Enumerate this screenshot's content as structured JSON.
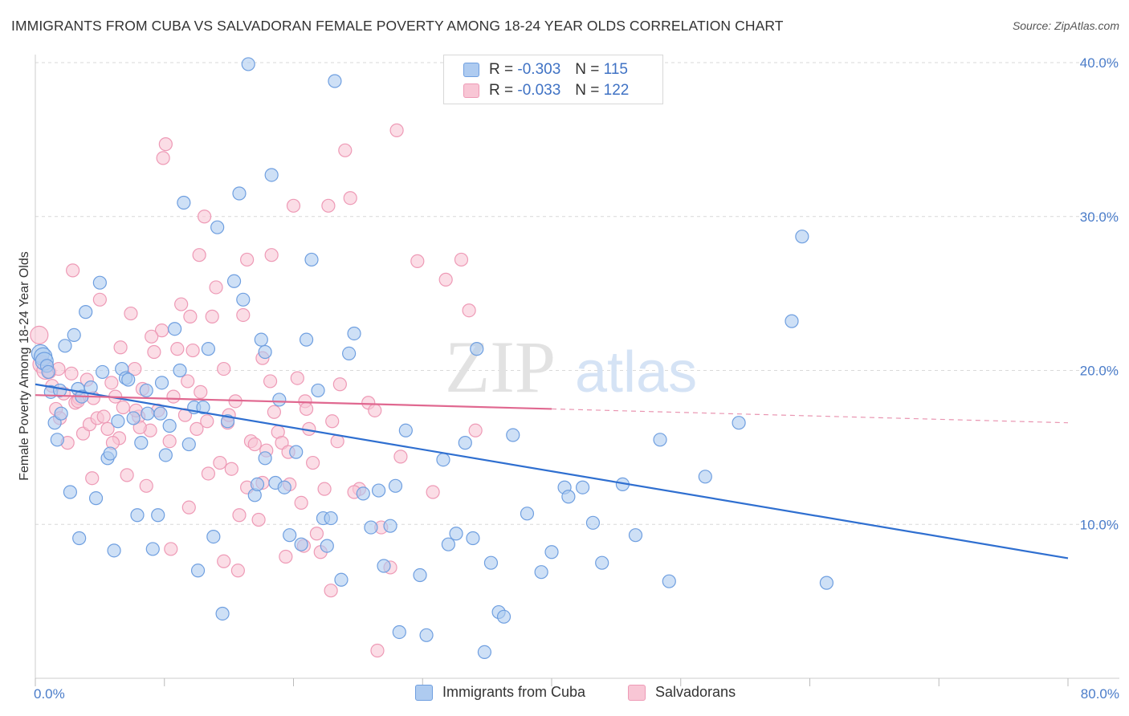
{
  "title": "IMMIGRANTS FROM CUBA VS SALVADORAN FEMALE POVERTY AMONG 18-24 YEAR OLDS CORRELATION CHART",
  "source": "Source: ZipAtlas.com",
  "watermark": {
    "zip": "ZIP",
    "atlas": "atlas"
  },
  "legend": {
    "r_label": "R =",
    "n_label": "N =",
    "rows": [
      {
        "r": "-0.303",
        "n": "115",
        "color": "#6f9fe0"
      },
      {
        "r": "-0.033",
        "n": "122",
        "color": "#f0a0bb"
      }
    ]
  },
  "bottom_legend": [
    "Immigrants from Cuba",
    "Salvadorans"
  ],
  "colors": {
    "blue_fill": "#aecbf0",
    "blue_stroke": "#6f9fe0",
    "blue_line": "#2f6fd0",
    "pink_fill": "#f8c6d5",
    "pink_stroke": "#ee9ab6",
    "pink_line": "#e06890",
    "grid": "#d9d9d9",
    "tick_text": "#4a7cc9"
  },
  "chart_data": {
    "type": "scatter",
    "title": "IMMIGRANTS FROM CUBA VS SALVADORAN FEMALE POVERTY AMONG 18-24 YEAR OLDS CORRELATION CHART",
    "xlabel": "",
    "ylabel": "Female Poverty Among 18-24 Year Olds",
    "xlim": [
      0,
      80
    ],
    "ylim": [
      0,
      40
    ],
    "x_ticks": [
      "0.0%",
      "80.0%"
    ],
    "y_ticks": [
      {
        "value": 10,
        "label": "10.0%"
      },
      {
        "value": 20,
        "label": "20.0%"
      },
      {
        "value": 30,
        "label": "30.0%"
      },
      {
        "value": 40,
        "label": "40.0%"
      }
    ],
    "grid": true,
    "legend_position": "top-center",
    "series": [
      {
        "name": "Immigrants from Cuba",
        "r": -0.303,
        "n": 115,
        "trend": {
          "x0": 0,
          "y0": 19.1,
          "x1": 80,
          "y1": 7.8,
          "dashed_from": null
        },
        "points": [
          [
            0.4,
            21.1
          ],
          [
            0.6,
            20.9
          ],
          [
            0.7,
            20.6
          ],
          [
            0.9,
            20.3
          ],
          [
            1.0,
            19.9
          ],
          [
            1.2,
            18.6
          ],
          [
            1.5,
            16.6
          ],
          [
            1.7,
            15.5
          ],
          [
            1.9,
            18.7
          ],
          [
            2.3,
            21.6
          ],
          [
            2.7,
            12.1
          ],
          [
            3.0,
            22.3
          ],
          [
            3.3,
            18.8
          ],
          [
            3.6,
            18.3
          ],
          [
            3.9,
            23.8
          ],
          [
            4.3,
            18.9
          ],
          [
            4.7,
            11.7
          ],
          [
            5.0,
            25.7
          ],
          [
            5.2,
            19.9
          ],
          [
            5.6,
            14.3
          ],
          [
            5.8,
            14.6
          ],
          [
            6.1,
            8.3
          ],
          [
            6.4,
            16.7
          ],
          [
            6.7,
            20.1
          ],
          [
            7.0,
            19.5
          ],
          [
            7.2,
            19.4
          ],
          [
            7.6,
            16.9
          ],
          [
            7.9,
            10.6
          ],
          [
            8.2,
            15.3
          ],
          [
            8.6,
            18.7
          ],
          [
            9.1,
            8.4
          ],
          [
            9.5,
            10.6
          ],
          [
            9.8,
            19.2
          ],
          [
            10.1,
            14.5
          ],
          [
            10.4,
            16.4
          ],
          [
            10.8,
            22.7
          ],
          [
            11.2,
            20.0
          ],
          [
            11.5,
            30.9
          ],
          [
            11.9,
            15.2
          ],
          [
            12.3,
            17.6
          ],
          [
            12.6,
            7.0
          ],
          [
            13.0,
            17.6
          ],
          [
            13.4,
            21.4
          ],
          [
            13.8,
            9.2
          ],
          [
            14.1,
            29.3
          ],
          [
            14.5,
            4.2
          ],
          [
            14.9,
            16.7
          ],
          [
            15.4,
            25.8
          ],
          [
            15.8,
            31.5
          ],
          [
            16.1,
            24.6
          ],
          [
            16.5,
            39.9
          ],
          [
            17.0,
            11.9
          ],
          [
            17.5,
            22.0
          ],
          [
            17.8,
            21.2
          ],
          [
            18.3,
            32.7
          ],
          [
            18.6,
            12.7
          ],
          [
            18.9,
            18.1
          ],
          [
            19.3,
            12.4
          ],
          [
            19.7,
            9.3
          ],
          [
            20.2,
            14.7
          ],
          [
            20.6,
            8.7
          ],
          [
            21.0,
            22.0
          ],
          [
            21.4,
            27.2
          ],
          [
            21.9,
            18.7
          ],
          [
            22.3,
            10.4
          ],
          [
            22.6,
            8.6
          ],
          [
            22.9,
            10.4
          ],
          [
            23.2,
            38.8
          ],
          [
            23.7,
            6.4
          ],
          [
            24.3,
            21.1
          ],
          [
            24.7,
            22.4
          ],
          [
            25.4,
            12.0
          ],
          [
            26.0,
            9.8
          ],
          [
            26.6,
            12.2
          ],
          [
            27.0,
            7.3
          ],
          [
            27.5,
            9.9
          ],
          [
            27.9,
            12.5
          ],
          [
            28.2,
            3.0
          ],
          [
            28.7,
            16.1
          ],
          [
            29.8,
            6.7
          ],
          [
            30.3,
            2.8
          ],
          [
            31.6,
            14.2
          ],
          [
            32.0,
            8.7
          ],
          [
            32.6,
            9.4
          ],
          [
            33.3,
            15.3
          ],
          [
            33.9,
            9.1
          ],
          [
            34.2,
            21.4
          ],
          [
            34.8,
            1.7
          ],
          [
            35.3,
            7.5
          ],
          [
            35.9,
            4.3
          ],
          [
            36.3,
            4.0
          ],
          [
            37.0,
            15.8
          ],
          [
            38.1,
            10.7
          ],
          [
            39.2,
            6.9
          ],
          [
            40.0,
            8.2
          ],
          [
            41.0,
            12.4
          ],
          [
            41.3,
            11.8
          ],
          [
            42.4,
            12.4
          ],
          [
            43.2,
            10.1
          ],
          [
            43.9,
            7.5
          ],
          [
            45.5,
            12.6
          ],
          [
            46.5,
            9.3
          ],
          [
            48.4,
            15.5
          ],
          [
            49.1,
            6.3
          ],
          [
            51.9,
            13.1
          ],
          [
            54.5,
            16.6
          ],
          [
            58.6,
            23.2
          ],
          [
            59.4,
            28.7
          ],
          [
            61.3,
            6.2
          ],
          [
            8.7,
            17.2
          ],
          [
            9.7,
            17.2
          ],
          [
            2.0,
            17.2
          ],
          [
            3.4,
            9.1
          ],
          [
            17.2,
            12.6
          ],
          [
            17.8,
            14.3
          ]
        ]
      },
      {
        "name": "Salvadorans",
        "r": -0.033,
        "n": 122,
        "trend": {
          "x0": 0,
          "y0": 18.4,
          "x1": 80,
          "y1": 16.6,
          "dashed_from": 40
        },
        "points": [
          [
            0.3,
            22.3
          ],
          [
            0.5,
            20.4
          ],
          [
            0.8,
            20.0
          ],
          [
            1.1,
            19.9
          ],
          [
            1.3,
            19.0
          ],
          [
            1.6,
            17.5
          ],
          [
            1.9,
            16.9
          ],
          [
            2.2,
            18.5
          ],
          [
            2.5,
            15.3
          ],
          [
            2.8,
            19.8
          ],
          [
            3.1,
            17.9
          ],
          [
            3.4,
            18.2
          ],
          [
            3.7,
            15.9
          ],
          [
            4.0,
            19.4
          ],
          [
            4.2,
            16.5
          ],
          [
            4.5,
            18.2
          ],
          [
            4.8,
            16.9
          ],
          [
            5.0,
            24.6
          ],
          [
            5.3,
            17.0
          ],
          [
            5.6,
            16.2
          ],
          [
            5.9,
            19.2
          ],
          [
            6.2,
            18.3
          ],
          [
            6.5,
            15.6
          ],
          [
            6.8,
            17.6
          ],
          [
            7.1,
            13.2
          ],
          [
            7.4,
            23.7
          ],
          [
            7.7,
            20.1
          ],
          [
            8.0,
            17.0
          ],
          [
            8.3,
            18.8
          ],
          [
            8.6,
            12.5
          ],
          [
            8.9,
            16.1
          ],
          [
            9.2,
            21.2
          ],
          [
            9.5,
            17.4
          ],
          [
            9.8,
            22.6
          ],
          [
            10.1,
            34.7
          ],
          [
            10.4,
            15.4
          ],
          [
            10.7,
            18.3
          ],
          [
            11.0,
            21.4
          ],
          [
            11.3,
            24.3
          ],
          [
            11.6,
            17.1
          ],
          [
            11.9,
            11.1
          ],
          [
            12.2,
            21.3
          ],
          [
            12.5,
            16.2
          ],
          [
            12.8,
            18.6
          ],
          [
            13.1,
            30.0
          ],
          [
            13.4,
            13.3
          ],
          [
            13.7,
            23.5
          ],
          [
            14.0,
            25.4
          ],
          [
            14.3,
            14.0
          ],
          [
            14.6,
            7.6
          ],
          [
            14.9,
            16.6
          ],
          [
            15.2,
            13.6
          ],
          [
            15.5,
            18.0
          ],
          [
            15.8,
            10.6
          ],
          [
            16.1,
            23.6
          ],
          [
            16.4,
            27.2
          ],
          [
            16.7,
            15.4
          ],
          [
            17.0,
            15.2
          ],
          [
            17.3,
            10.3
          ],
          [
            17.6,
            12.7
          ],
          [
            17.9,
            14.8
          ],
          [
            18.2,
            19.3
          ],
          [
            18.5,
            17.3
          ],
          [
            18.8,
            16.0
          ],
          [
            19.1,
            15.3
          ],
          [
            19.4,
            7.9
          ],
          [
            19.7,
            12.6
          ],
          [
            20.0,
            30.7
          ],
          [
            20.3,
            19.5
          ],
          [
            20.6,
            11.4
          ],
          [
            20.9,
            18.0
          ],
          [
            21.2,
            16.2
          ],
          [
            21.5,
            14.0
          ],
          [
            21.8,
            9.4
          ],
          [
            22.1,
            8.2
          ],
          [
            22.4,
            12.3
          ],
          [
            22.7,
            30.7
          ],
          [
            23.0,
            16.7
          ],
          [
            23.6,
            19.1
          ],
          [
            24.0,
            34.3
          ],
          [
            24.4,
            31.2
          ],
          [
            25.1,
            12.3
          ],
          [
            25.8,
            17.9
          ],
          [
            26.3,
            17.4
          ],
          [
            26.8,
            9.8
          ],
          [
            27.5,
            7.2
          ],
          [
            28.3,
            14.4
          ],
          [
            29.6,
            27.1
          ],
          [
            30.8,
            12.1
          ],
          [
            31.8,
            25.9
          ],
          [
            33.0,
            27.2
          ],
          [
            33.6,
            23.9
          ],
          [
            34.1,
            16.1
          ],
          [
            28.0,
            35.6
          ],
          [
            2.9,
            26.5
          ],
          [
            9.9,
            33.8
          ],
          [
            12.7,
            27.5
          ],
          [
            18.3,
            27.5
          ],
          [
            10.5,
            8.4
          ],
          [
            15.7,
            7.0
          ],
          [
            16.4,
            12.4
          ],
          [
            22.9,
            5.7
          ],
          [
            26.5,
            1.8
          ],
          [
            6.6,
            21.5
          ],
          [
            7.8,
            17.4
          ],
          [
            9.0,
            22.2
          ],
          [
            13.3,
            16.7
          ],
          [
            20.8,
            8.6
          ],
          [
            24.7,
            12.1
          ],
          [
            4.4,
            13.0
          ],
          [
            6.0,
            15.3
          ],
          [
            8.1,
            16.3
          ],
          [
            11.8,
            19.3
          ],
          [
            14.6,
            20.1
          ],
          [
            17.6,
            20.8
          ],
          [
            19.6,
            14.7
          ],
          [
            21.0,
            17.5
          ],
          [
            23.4,
            15.4
          ],
          [
            1.8,
            20.1
          ],
          [
            3.3,
            18.0
          ],
          [
            12.0,
            23.5
          ],
          [
            15.0,
            17.1
          ]
        ]
      }
    ]
  }
}
